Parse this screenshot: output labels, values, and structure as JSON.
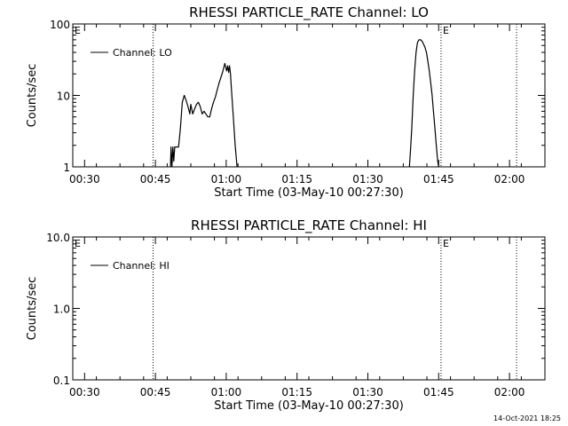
{
  "footer": {
    "timestamp": "14-Oct-2021 18:25"
  },
  "colors": {
    "background": "#ffffff",
    "ink": "#000000"
  },
  "chart_data": [
    {
      "type": "line",
      "title": "RHESSI PARTICLE_RATE Channel: LO",
      "xlabel": "Start Time (03-May-10 00:27:30)",
      "ylabel": "Counts/sec",
      "yscale": "log",
      "ylim": [
        1,
        100
      ],
      "y_ticks": [
        1,
        10,
        100
      ],
      "y_tick_labels": [
        "1",
        "10",
        "100"
      ],
      "x_unit": "minutes after 00:27:30",
      "xlim": [
        0,
        100
      ],
      "x_ticks": [
        2.5,
        17.5,
        32.5,
        47.5,
        62.5,
        77.5,
        92.5
      ],
      "x_tick_labels": [
        "00:30",
        "00:45",
        "01:00",
        "01:15",
        "01:30",
        "01:45",
        "02:00"
      ],
      "legend": "top-left",
      "grid": false,
      "event_lines": [
        {
          "x": 17.0,
          "label": "",
          "style": "dotted"
        },
        {
          "x": 78.0,
          "label": "E",
          "style": "dotted"
        },
        {
          "x": 94.0,
          "label": "",
          "style": "dotted"
        }
      ],
      "corner_label": "E",
      "series": [
        {
          "name": "Channel: LO",
          "segments": [
            [
              [
                20.7,
                1.0
              ],
              [
                20.8,
                1.9
              ],
              [
                21.0,
                1.0
              ],
              [
                21.2,
                1.9
              ],
              [
                21.4,
                1.2
              ],
              [
                21.6,
                1.9
              ],
              [
                22.0,
                1.9
              ],
              [
                22.4,
                1.9
              ],
              [
                22.8,
                3.5
              ],
              [
                23.2,
                8.0
              ],
              [
                23.6,
                10.0
              ],
              [
                24.0,
                8.5
              ],
              [
                24.4,
                7.0
              ],
              [
                24.8,
                5.5
              ],
              [
                25.0,
                7.5
              ],
              [
                25.4,
                5.5
              ],
              [
                25.8,
                6.5
              ],
              [
                26.2,
                7.5
              ],
              [
                26.6,
                8.0
              ],
              [
                27.0,
                7.0
              ],
              [
                27.4,
                5.5
              ],
              [
                27.8,
                6.0
              ],
              [
                28.2,
                5.5
              ],
              [
                28.6,
                5.0
              ],
              [
                29.0,
                5.0
              ],
              [
                29.4,
                6.5
              ],
              [
                29.8,
                8.0
              ],
              [
                30.2,
                9.5
              ],
              [
                30.6,
                12.0
              ],
              [
                31.0,
                15.0
              ],
              [
                31.4,
                18.0
              ],
              [
                31.8,
                22.0
              ],
              [
                32.2,
                28.0
              ],
              [
                32.6,
                22.0
              ],
              [
                32.8,
                26.0
              ],
              [
                33.0,
                21.0
              ],
              [
                33.2,
                26.0
              ],
              [
                33.4,
                20.0
              ],
              [
                33.6,
                12.0
              ],
              [
                34.0,
                5.0
              ],
              [
                34.4,
                2.0
              ],
              [
                34.8,
                1.0
              ]
            ],
            [
              [
                71.3,
                1.0
              ],
              [
                71.5,
                1.6
              ],
              [
                71.8,
                3.5
              ],
              [
                72.1,
                10.0
              ],
              [
                72.4,
                22.0
              ],
              [
                72.7,
                40.0
              ],
              [
                73.0,
                55.0
              ],
              [
                73.3,
                60.0
              ],
              [
                73.7,
                60.0
              ],
              [
                74.0,
                57.0
              ],
              [
                74.3,
                52.0
              ],
              [
                74.6,
                47.0
              ],
              [
                74.9,
                40.0
              ],
              [
                75.2,
                30.0
              ],
              [
                75.5,
                22.0
              ],
              [
                75.8,
                15.0
              ],
              [
                76.1,
                10.0
              ],
              [
                76.4,
                6.0
              ],
              [
                76.7,
                3.5
              ],
              [
                77.0,
                2.0
              ],
              [
                77.3,
                1.2
              ],
              [
                77.5,
                1.0
              ]
            ]
          ]
        }
      ]
    },
    {
      "type": "line",
      "title": "RHESSI PARTICLE_RATE Channel: HI",
      "xlabel": "Start Time (03-May-10 00:27:30)",
      "ylabel": "Counts/sec",
      "yscale": "log",
      "ylim": [
        0.1,
        10.0
      ],
      "y_ticks": [
        0.1,
        1.0,
        10.0
      ],
      "y_tick_labels": [
        "0.1",
        "1.0",
        "10.0"
      ],
      "x_unit": "minutes after 00:27:30",
      "xlim": [
        0,
        100
      ],
      "x_ticks": [
        2.5,
        17.5,
        32.5,
        47.5,
        62.5,
        77.5,
        92.5
      ],
      "x_tick_labels": [
        "00:30",
        "00:45",
        "01:00",
        "01:15",
        "01:30",
        "01:45",
        "02:00"
      ],
      "legend": "top-left",
      "grid": false,
      "event_lines": [
        {
          "x": 17.0,
          "label": "",
          "style": "dotted"
        },
        {
          "x": 78.0,
          "label": "E",
          "style": "dotted"
        },
        {
          "x": 94.0,
          "label": "",
          "style": "dotted"
        }
      ],
      "corner_label": "E",
      "series": [
        {
          "name": "Channel: HI",
          "segments": []
        }
      ]
    }
  ]
}
